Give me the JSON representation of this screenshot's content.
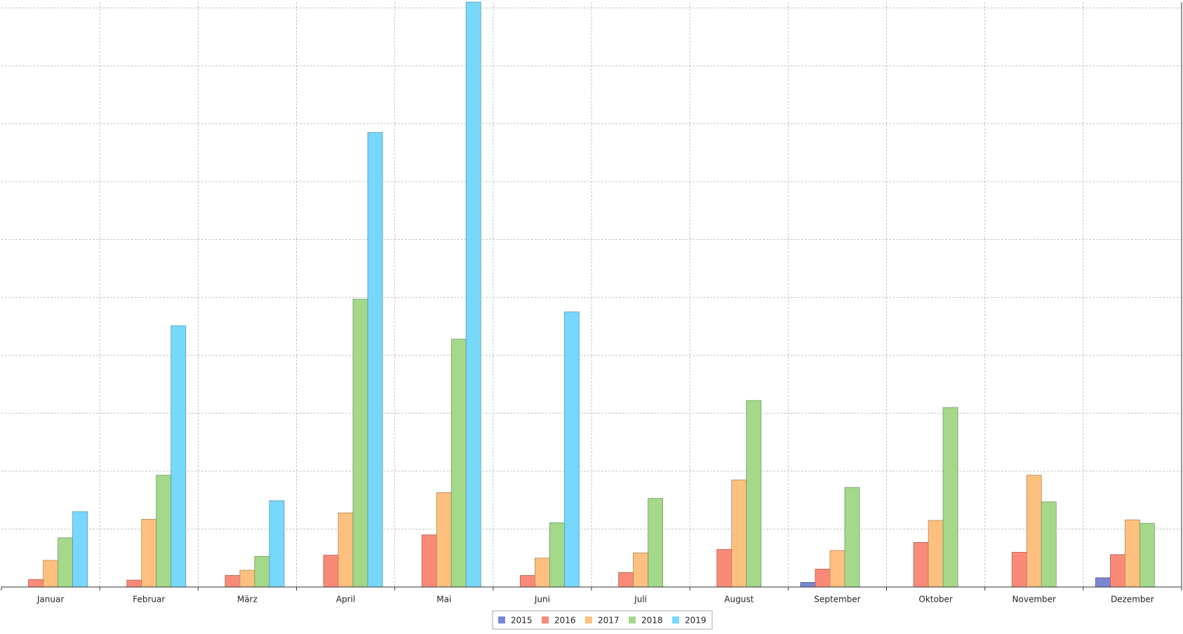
{
  "chart_data": {
    "type": "bar",
    "categories": [
      "Januar",
      "Februar",
      "März",
      "April",
      "Mai",
      "Juni",
      "Juli",
      "August",
      "September",
      "Oktober",
      "November",
      "Dezember"
    ],
    "series": [
      {
        "name": "2015",
        "color": "#7b86d4",
        "values": [
          null,
          null,
          null,
          null,
          null,
          null,
          null,
          null,
          0.08,
          null,
          null,
          0.16
        ]
      },
      {
        "name": "2016",
        "color": "#fa8a78",
        "values": [
          0.13,
          0.12,
          0.2,
          0.55,
          0.9,
          0.2,
          0.25,
          0.65,
          0.31,
          0.77,
          0.6,
          0.56
        ]
      },
      {
        "name": "2017",
        "color": "#fdc07e",
        "values": [
          0.46,
          1.17,
          0.29,
          1.28,
          1.63,
          0.5,
          0.59,
          1.85,
          0.63,
          1.15,
          1.93,
          1.16
        ]
      },
      {
        "name": "2018",
        "color": "#a4d98a",
        "values": [
          0.85,
          1.93,
          0.53,
          4.97,
          4.28,
          1.11,
          1.53,
          3.22,
          1.72,
          3.1,
          1.47,
          1.1
        ]
      },
      {
        "name": "2019",
        "color": "#78d8fc",
        "values": [
          1.3,
          4.51,
          1.49,
          7.85,
          10.1,
          4.75,
          null,
          null,
          null,
          null,
          null,
          null
        ]
      }
    ],
    "ylim": [
      0,
      10.1
    ],
    "yticks": [
      1,
      2,
      3,
      4,
      5,
      6,
      7,
      8,
      9,
      10
    ],
    "grid": true
  }
}
